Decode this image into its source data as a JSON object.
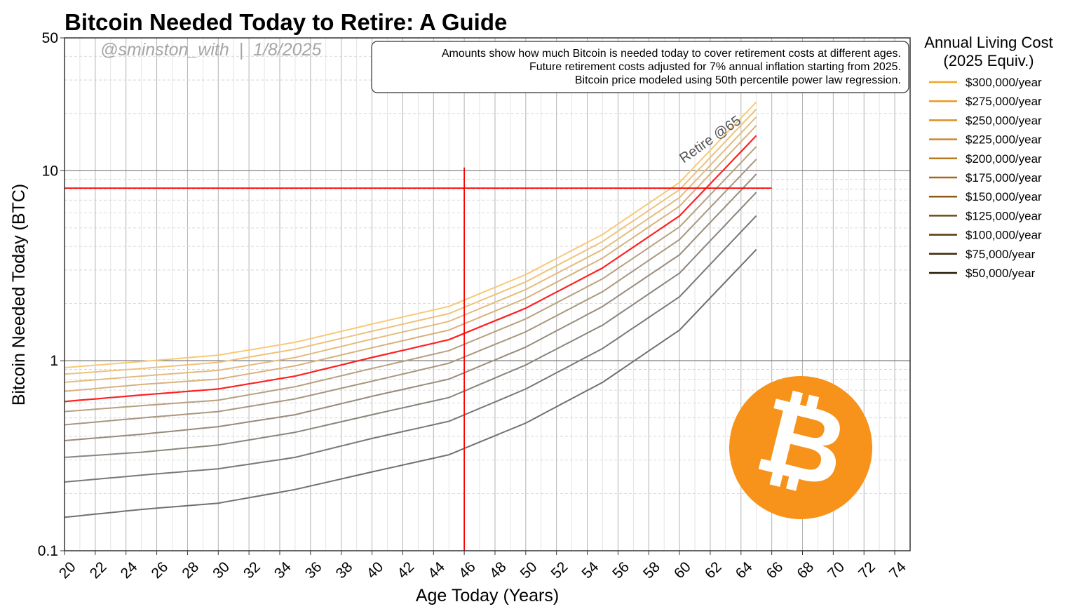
{
  "chart_data": {
    "type": "line",
    "title": "Bitcoin Needed Today to Retire: A Guide",
    "watermark": "@sminston_with  |  1/8/2025",
    "annotation_lines": [
      "Amounts show how much Bitcoin is needed today to cover retirement costs at different ages.",
      "Future retirement costs adjusted for 7% annual inflation starting from 2025.",
      "Bitcoin price modeled using 50th percentile power law regression."
    ],
    "xlabel": "Age Today (Years)",
    "ylabel": "Bitcoin Needed Today (BTC)",
    "xlim": [
      20,
      75
    ],
    "ylim": [
      0.1,
      50
    ],
    "yscale": "log",
    "x_ticks": [
      "20",
      "22",
      "24",
      "26",
      "28",
      "30",
      "32",
      "34",
      "36",
      "38",
      "40",
      "42",
      "44",
      "46",
      "48",
      "50",
      "52",
      "54",
      "56",
      "58",
      "60",
      "62",
      "64",
      "66",
      "68",
      "70",
      "72",
      "74"
    ],
    "y_ticks": [
      {
        "value": 0.1,
        "label": "0.1"
      },
      {
        "value": 1,
        "label": "1"
      },
      {
        "value": 10,
        "label": "10"
      },
      {
        "value": 50,
        "label": "50"
      }
    ],
    "grid": true,
    "legend": {
      "title_line1": "Annual Living Cost",
      "title_line2": "(2025 Equiv.)",
      "placement": "outside-right"
    },
    "x": [
      20,
      25,
      30,
      35,
      40,
      45,
      50,
      55,
      60,
      65
    ],
    "series": [
      {
        "name": "$300,000/year",
        "color": "#f7c977",
        "legend_color": "#f5a623",
        "values": [
          0.92,
          0.99,
          1.07,
          1.25,
          1.56,
          1.93,
          2.84,
          4.62,
          8.67,
          23.0
        ]
      },
      {
        "name": "$275,000/year",
        "color": "#eec27a",
        "legend_color": "#e89b22",
        "values": [
          0.85,
          0.91,
          0.98,
          1.15,
          1.43,
          1.77,
          2.6,
          4.24,
          7.95,
          21.1
        ]
      },
      {
        "name": "$250,000/year",
        "color": "#e4bb7c",
        "legend_color": "#db9021",
        "values": [
          0.77,
          0.83,
          0.89,
          1.04,
          1.3,
          1.61,
          2.37,
          3.85,
          7.22,
          19.2
        ]
      },
      {
        "name": "$225,000/year",
        "color": "#d9b17c",
        "legend_color": "#cd8620",
        "values": [
          0.69,
          0.75,
          0.8,
          0.94,
          1.17,
          1.45,
          2.13,
          3.47,
          6.5,
          17.3
        ]
      },
      {
        "name": "$200,000/year",
        "color": "#ff2020",
        "legend_color": "#b8781c",
        "values": [
          0.61,
          0.66,
          0.71,
          0.83,
          1.04,
          1.29,
          1.89,
          3.08,
          5.78,
          15.3
        ]
      },
      {
        "name": "$175,000/year",
        "color": "#b8a080",
        "legend_color": "#a36a19",
        "values": [
          0.54,
          0.58,
          0.62,
          0.73,
          0.91,
          1.13,
          1.66,
          2.7,
          5.06,
          13.4
        ]
      },
      {
        "name": "$150,000/year",
        "color": "#a8967f",
        "legend_color": "#8a5a15",
        "values": [
          0.46,
          0.5,
          0.54,
          0.63,
          0.78,
          0.97,
          1.42,
          2.31,
          4.34,
          11.5
        ]
      },
      {
        "name": "$125,000/year",
        "color": "#978b7c",
        "legend_color": "#724a12",
        "values": [
          0.38,
          0.41,
          0.45,
          0.52,
          0.65,
          0.8,
          1.18,
          1.93,
          3.61,
          9.6
        ]
      },
      {
        "name": "$100,000/year",
        "color": "#8a847c",
        "legend_color": "#5a3a0e",
        "values": [
          0.31,
          0.33,
          0.36,
          0.42,
          0.52,
          0.64,
          0.95,
          1.54,
          2.89,
          7.7
        ]
      },
      {
        "name": "$75,000/year",
        "color": "#7a7878",
        "legend_color": "#402a0a",
        "values": [
          0.23,
          0.25,
          0.27,
          0.31,
          0.39,
          0.48,
          0.71,
          1.16,
          2.17,
          5.8
        ]
      },
      {
        "name": "$50,000/year",
        "color": "#707070",
        "legend_color": "#261806",
        "values": [
          0.15,
          0.165,
          0.178,
          0.21,
          0.26,
          0.32,
          0.47,
          0.77,
          1.45,
          3.85
        ]
      }
    ],
    "reference_lines": {
      "horizontal_btc": 8.1,
      "vertical_age": 46,
      "color": "#ff0000"
    },
    "retire_label": "Retire @65",
    "logo_symbol": "₿",
    "logo_color": "#f7931a"
  }
}
